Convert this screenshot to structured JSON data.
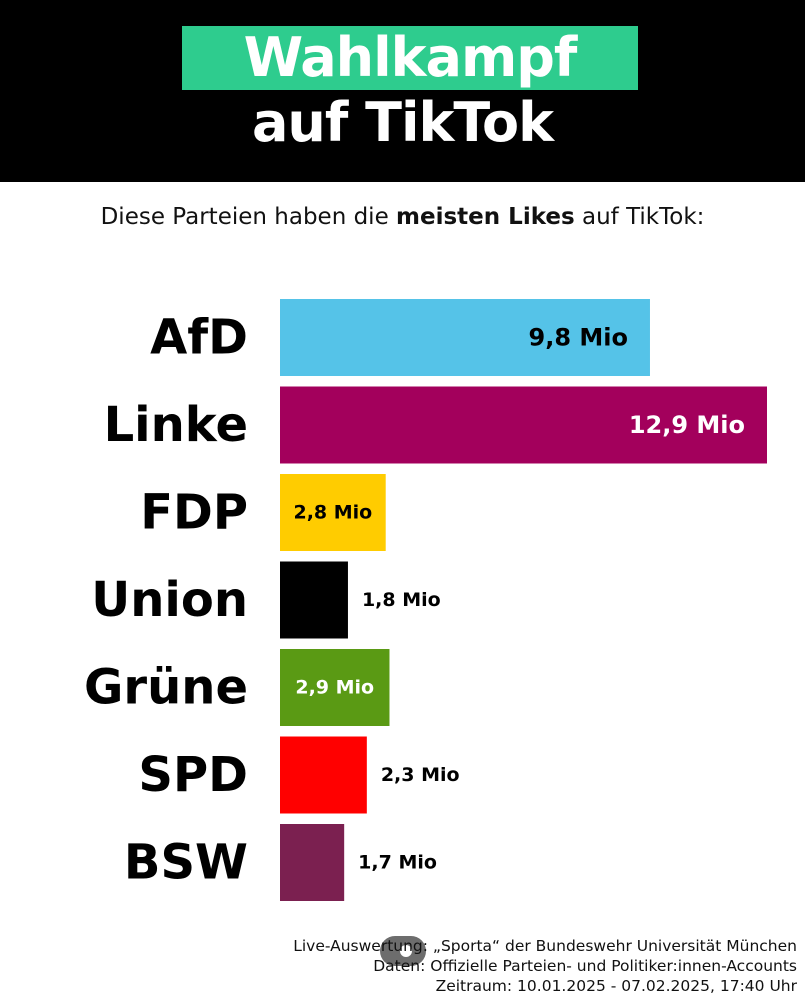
{
  "header": {
    "title_line1": "Wahlkampf",
    "title_line2": "auf TikTok",
    "accent_color": "#2ecc8e"
  },
  "subtitle": {
    "pre": "Diese Parteien haben die ",
    "bold": "meisten Likes",
    "post": " auf TikTok:"
  },
  "chart_data": {
    "type": "bar",
    "orientation": "horizontal",
    "unit": "Mio",
    "categories": [
      "AfD",
      "Linke",
      "FDP",
      "Union",
      "Grüne",
      "SPD",
      "BSW"
    ],
    "values": [
      9.8,
      12.9,
      2.8,
      1.8,
      2.9,
      2.3,
      1.7
    ],
    "value_labels": [
      "9,8 Mio",
      "12,9 Mio",
      "2,8 Mio",
      "1,8 Mio",
      "2,9 Mio",
      "2,3 Mio",
      "1,7 Mio"
    ],
    "colors": [
      "#55c3e8",
      "#a3005c",
      "#ffcc00",
      "#000000",
      "#5a9a14",
      "#ff0000",
      "#7b2050"
    ],
    "label_colors": [
      "#000000",
      "#ffffff",
      "#000000",
      "#000000",
      "#ffffff",
      "#000000",
      "#000000"
    ],
    "label_inside": [
      true,
      true,
      true,
      false,
      true,
      false,
      false
    ]
  },
  "footer": {
    "line1": "Live-Auswertung: „Sporta“ der Bundeswehr Universität München",
    "line2": "Daten: Offizielle Parteien- und Politiker:innen-Accounts",
    "line3": "Zeitraum: 10.01.2025 - 07.02.2025, 17:40 Uhr"
  }
}
